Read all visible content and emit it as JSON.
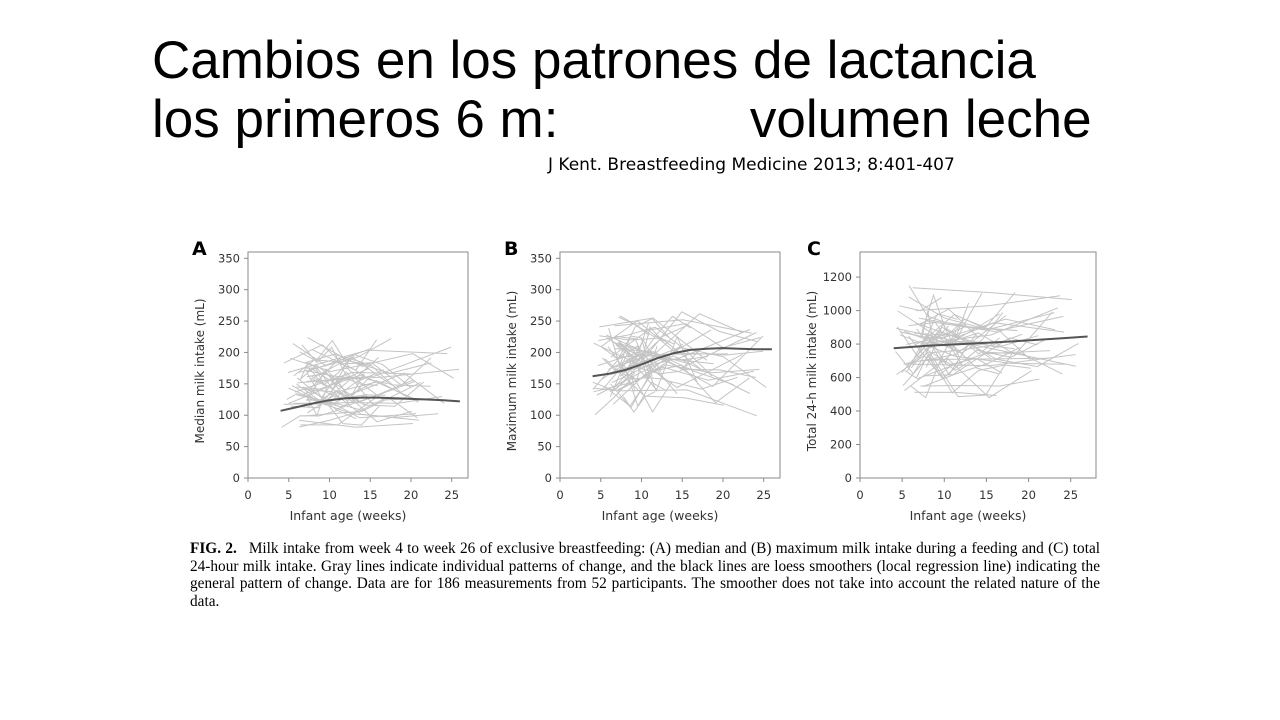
{
  "slide": {
    "title_line1": "Cambios en los patrones de lactancia",
    "title_line2": "los primeros 6 m:             volumen leche",
    "citation": "J Kent. Breastfeeding Medicine 2013; 8:401-407"
  },
  "caption": {
    "label": "FIG. 2.",
    "text": "Milk intake from week 4 to week 26 of exclusive breastfeeding: (A) median and (B) maximum milk intake during a feeding and (C) total 24-hour milk intake. Gray lines indicate individual patterns of change, and the black lines are loess smoothers (local regression line) indicating the general pattern of change. Data are for 186 measurements from 52 participants. The smoother does not take into account the related nature of the data."
  },
  "colors": {
    "individual": "#c4c4c4",
    "smoother": "#555555",
    "axis": "#8a8a8a"
  },
  "chart_data": [
    {
      "type": "line",
      "panel": "A",
      "xlabel": "Infant age (weeks)",
      "ylabel": "Median milk intake (mL)",
      "xlim": [
        0,
        27
      ],
      "ylim": [
        0,
        360
      ],
      "xticks": [
        0,
        5,
        10,
        15,
        20,
        25
      ],
      "yticks": [
        0,
        50,
        100,
        150,
        200,
        250,
        300,
        350
      ],
      "grid": false,
      "smoother": {
        "x": [
          4,
          6,
          8,
          10,
          12,
          14,
          16,
          18,
          20,
          22,
          24,
          26
        ],
        "y": [
          107,
          113,
          119,
          124,
          127,
          128,
          128,
          127,
          126,
          125,
          124,
          122
        ]
      },
      "individual_ranges": {
        "start_x": [
          4,
          8
        ],
        "end_x": [
          9,
          26
        ],
        "y_center": [
          100,
          200
        ],
        "y_spread": [
          60,
          250
        ]
      }
    },
    {
      "type": "line",
      "panel": "B",
      "xlabel": "Infant age (weeks)",
      "ylabel": "Maximum milk intake (mL)",
      "xlim": [
        0,
        27
      ],
      "ylim": [
        0,
        360
      ],
      "xticks": [
        0,
        5,
        10,
        15,
        20,
        25
      ],
      "yticks": [
        0,
        50,
        100,
        150,
        200,
        250,
        300,
        350
      ],
      "grid": false,
      "smoother": {
        "x": [
          4,
          6,
          8,
          10,
          12,
          14,
          16,
          18,
          20,
          22,
          24,
          26
        ],
        "y": [
          162,
          166,
          172,
          181,
          191,
          199,
          204,
          206,
          207,
          206,
          205,
          205
        ]
      },
      "individual_ranges": {
        "start_x": [
          4,
          8
        ],
        "end_x": [
          9,
          26
        ],
        "y_center": [
          140,
          230
        ],
        "y_spread": [
          90,
          350
        ]
      }
    },
    {
      "type": "line",
      "panel": "C",
      "xlabel": "Infant age (weeks)",
      "ylabel": "Total 24-h milk intake (mL)",
      "xlim": [
        0,
        28
      ],
      "ylim": [
        0,
        1350
      ],
      "xticks": [
        0,
        5,
        10,
        15,
        20,
        25
      ],
      "yticks": [
        0,
        200,
        400,
        600,
        800,
        1000,
        1200
      ],
      "grid": false,
      "smoother": {
        "x": [
          4,
          8,
          12,
          16,
          20,
          24,
          27
        ],
        "y": [
          775,
          790,
          800,
          810,
          822,
          835,
          845
        ]
      },
      "individual_ranges": {
        "start_x": [
          4,
          8
        ],
        "end_x": [
          9,
          27
        ],
        "y_center": [
          600,
          1050
        ],
        "y_spread": [
          480,
          1350
        ]
      }
    }
  ]
}
